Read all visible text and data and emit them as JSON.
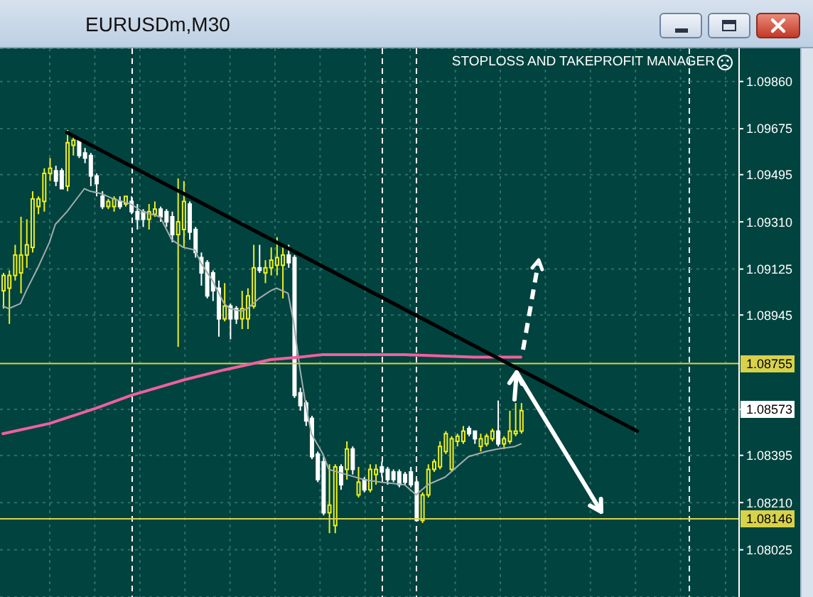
{
  "chart_data": {
    "type": "candlestick",
    "title": "EURUSDm,M30",
    "annotations": [
      "STOPLOSS AND TAKEPROFIT MANAGER",
      {
        "text": "1.08573",
        "y": 1.08573
      }
    ],
    "categories": [
      null,
      null,
      null,
      null,
      null,
      null,
      null,
      null,
      null,
      null,
      null,
      null,
      null,
      null,
      null,
      null,
      null,
      null,
      null,
      null,
      null,
      null,
      null,
      null,
      null,
      null,
      null,
      null,
      null,
      null,
      null,
      null,
      null,
      null,
      null,
      null,
      null,
      null,
      null,
      null,
      null,
      null,
      null,
      null,
      null,
      null,
      null,
      null,
      null,
      null,
      null,
      null,
      null,
      null,
      null,
      null,
      null,
      null,
      null,
      null,
      null,
      null,
      null,
      null,
      null,
      null,
      null,
      null,
      null,
      null,
      null,
      null,
      null,
      null,
      null,
      null,
      null,
      null,
      null,
      null,
      null,
      null,
      null,
      null,
      null,
      null,
      null,
      null,
      null,
      null,
      null,
      null,
      null,
      null,
      null,
      null,
      null,
      null,
      null,
      null,
      null,
      null,
      null,
      null,
      null,
      null,
      null,
      null,
      null,
      null,
      null,
      null,
      null,
      null,
      null,
      null,
      null,
      null,
      null,
      null,
      null,
      null,
      null,
      null,
      null,
      null,
      null
    ],
    "ohlc": [
      [
        1.0904,
        1.0911,
        1.0897,
        1.091
      ],
      [
        1.0905,
        1.0912,
        1.0891,
        1.091
      ],
      [
        1.091,
        1.0922,
        1.0908,
        1.0918
      ],
      [
        1.0911,
        1.0933,
        1.0903,
        1.0918
      ],
      [
        1.0918,
        1.0932,
        1.0913,
        1.0922
      ],
      [
        1.0921,
        1.0943,
        1.0919,
        1.094
      ],
      [
        1.0937,
        1.0941,
        1.0934,
        1.094
      ],
      [
        1.0939,
        1.0952,
        1.0935,
        1.095
      ],
      [
        1.095,
        1.0956,
        1.0947,
        1.0952
      ],
      [
        1.0951,
        1.0953,
        1.0945,
        1.0947
      ],
      [
        1.0951,
        1.0952,
        1.0944,
        1.0944
      ],
      [
        1.0945,
        1.0967,
        1.0943,
        1.0962
      ],
      [
        1.0961,
        1.0965,
        1.0957,
        1.0963
      ],
      [
        1.0963,
        1.0964,
        1.0956,
        1.0957
      ],
      [
        1.0958,
        1.096,
        1.0954,
        1.0956
      ],
      [
        1.0957,
        1.0958,
        1.0945,
        1.0949
      ],
      [
        1.0949,
        1.095,
        1.0941,
        1.0946
      ],
      [
        1.0941,
        1.0943,
        1.0936,
        1.0937
      ],
      [
        1.0937,
        1.094,
        1.0936,
        1.0939
      ],
      [
        1.0937,
        1.0941,
        1.0935,
        1.094
      ],
      [
        1.0939,
        1.0941,
        1.0936,
        1.0937
      ],
      [
        1.0938,
        1.0941,
        1.0937,
        1.0941
      ],
      [
        1.0939,
        1.0941,
        1.0934,
        1.0935
      ],
      [
        1.0935,
        1.0938,
        1.0928,
        1.0932
      ],
      [
        1.0935,
        1.0936,
        1.0929,
        1.0932
      ],
      [
        1.0932,
        1.0938,
        1.0928,
        1.0935
      ],
      [
        1.0934,
        1.0939,
        1.0933,
        1.0936
      ],
      [
        1.0936,
        1.0937,
        1.0931,
        1.0933
      ],
      [
        1.0935,
        1.0936,
        1.0929,
        1.0931
      ],
      [
        1.0933,
        1.0935,
        1.0923,
        1.0926
      ],
      [
        1.0926,
        1.0948,
        1.0882,
        1.0931
      ],
      [
        1.0928,
        1.0947,
        1.0921,
        1.0939
      ],
      [
        1.0938,
        1.0939,
        1.0924,
        1.0927
      ],
      [
        1.0928,
        1.0929,
        1.0917,
        1.0919
      ],
      [
        1.0917,
        1.0919,
        1.0906,
        1.0911
      ],
      [
        1.0915,
        1.0916,
        1.0901,
        1.0902
      ],
      [
        1.0911,
        1.0912,
        1.09,
        1.0904
      ],
      [
        1.0905,
        1.0908,
        1.0886,
        1.0893
      ],
      [
        1.0893,
        1.0907,
        1.0892,
        1.0898
      ],
      [
        1.0898,
        1.0899,
        1.0885,
        1.0893
      ],
      [
        1.0897,
        1.0898,
        1.0891,
        1.0893
      ],
      [
        1.0893,
        1.0904,
        1.0889,
        1.0897
      ],
      [
        1.0893,
        1.0905,
        1.0889,
        1.0902
      ],
      [
        1.0898,
        1.0922,
        1.0897,
        1.0913
      ],
      [
        1.0913,
        1.0922,
        1.0911,
        1.0912
      ],
      [
        1.0911,
        1.0916,
        1.0907,
        1.0913
      ],
      [
        1.0913,
        1.0921,
        1.091,
        1.0916
      ],
      [
        1.0914,
        1.0925,
        1.091,
        1.0917
      ],
      [
        1.0914,
        1.0921,
        1.0901,
        1.0918
      ],
      [
        1.0918,
        1.0922,
        1.0913,
        1.0915
      ],
      [
        1.0917,
        1.0918,
        1.0862,
        1.0863
      ],
      [
        1.0864,
        1.0866,
        1.0857,
        1.0859
      ],
      [
        1.086,
        1.0861,
        1.0851,
        1.0853
      ],
      [
        1.0854,
        1.0855,
        1.0838,
        1.0839
      ],
      [
        1.084,
        1.0841,
        1.0829,
        1.083
      ],
      [
        1.0837,
        1.0839,
        1.0816,
        1.0817
      ],
      [
        1.0817,
        1.0836,
        1.0809,
        1.082
      ],
      [
        1.0812,
        1.0836,
        1.0809,
        1.0835
      ],
      [
        1.0835,
        1.0836,
        1.0826,
        1.0828
      ],
      [
        1.0834,
        1.0845,
        1.083,
        1.0842
      ],
      [
        1.0842,
        1.0843,
        1.0832,
        1.0834
      ],
      [
        1.0824,
        1.0835,
        1.0823,
        1.0829
      ],
      [
        1.083,
        1.0831,
        1.0825,
        1.0826
      ],
      [
        1.0826,
        1.0836,
        1.0825,
        1.0834
      ],
      [
        1.0832,
        1.0836,
        1.0828,
        1.0834
      ],
      [
        1.0835,
        1.0837,
        1.0831,
        1.0833
      ],
      [
        1.0834,
        1.0835,
        1.0828,
        1.083
      ],
      [
        1.0833,
        1.0834,
        1.0829,
        1.083
      ],
      [
        1.0833,
        1.0834,
        1.0827,
        1.0828
      ],
      [
        1.0832,
        1.0833,
        1.0828,
        1.0829
      ],
      [
        1.0833,
        1.0835,
        1.0827,
        1.0828
      ],
      [
        1.0829,
        1.083,
        1.0814,
        1.0814
      ],
      [
        1.0814,
        1.0825,
        1.0813,
        1.0824
      ],
      [
        1.0824,
        1.0836,
        1.0823,
        1.0834
      ],
      [
        1.0834,
        1.0838,
        1.0833,
        1.0837
      ],
      [
        1.0835,
        1.0845,
        1.0834,
        1.0843
      ],
      [
        1.0841,
        1.0849,
        1.084,
        1.0848
      ],
      [
        1.0834,
        1.0847,
        1.0833,
        1.0846
      ],
      [
        1.0845,
        1.0848,
        1.0843,
        1.0847
      ],
      [
        1.0845,
        1.0851,
        1.0844,
        1.0849
      ],
      [
        1.085,
        1.0851,
        1.0847,
        1.0848
      ],
      [
        1.0849,
        1.0849,
        1.0844,
        1.0846
      ],
      [
        1.0843,
        1.0848,
        1.0841,
        1.0846
      ],
      [
        1.0844,
        1.0848,
        1.0843,
        1.0847
      ],
      [
        1.0846,
        1.085,
        1.0845,
        1.0849
      ],
      [
        1.0849,
        1.0861,
        1.0843,
        1.0844
      ],
      [
        1.0844,
        1.0847,
        1.0842,
        1.0846
      ],
      [
        1.0845,
        1.0857,
        1.0844,
        1.0849
      ],
      [
        1.0848,
        1.086,
        1.0847,
        1.0849
      ],
      [
        1.0849,
        1.086,
        1.0848,
        1.0857
      ],
      null,
      null,
      null,
      null,
      null,
      null,
      null,
      null,
      null,
      null,
      null,
      null,
      null,
      null,
      null,
      null,
      null,
      null,
      null,
      null,
      null,
      null,
      null,
      null,
      null,
      null,
      null,
      null,
      null,
      null,
      null,
      null,
      null,
      null,
      null,
      null,
      null
    ],
    "colors": [
      "#eef01e",
      "#eef01e",
      "#eef01e",
      "#eef01e",
      "#eef01e",
      "#eef01e",
      "#eef01e",
      "#eef01e",
      "#eef01e",
      "#ffffff",
      "#ffffff",
      "#eef01e",
      "#eef01e",
      "#ffffff",
      "#ffffff",
      "#ffffff",
      "#ffffff",
      "#ffffff",
      "#eef01e",
      "#eef01e",
      "#ffffff",
      "#eef01e",
      "#ffffff",
      "#ffffff",
      "#ffffff",
      "#eef01e",
      "#eef01e",
      "#ffffff",
      "#ffffff",
      "#ffffff",
      "#eef01e",
      "#eef01e",
      "#ffffff",
      "#ffffff",
      "#ffffff",
      "#ffffff",
      "#ffffff",
      "#ffffff",
      "#eef01e",
      "#ffffff",
      "#ffffff",
      "#eef01e",
      "#eef01e",
      "#eef01e",
      "#ffffff",
      "#eef01e",
      "#eef01e",
      "#eef01e",
      "#eef01e",
      "#ffffff",
      "#ffffff",
      "#ffffff",
      "#ffffff",
      "#ffffff",
      "#ffffff",
      "#ffffff",
      "#eef01e",
      "#eef01e",
      "#ffffff",
      "#eef01e",
      "#ffffff",
      "#eef01e",
      "#ffffff",
      "#eef01e",
      "#eef01e",
      "#ffffff",
      "#ffffff",
      "#ffffff",
      "#ffffff",
      "#ffffff",
      "#ffffff",
      "#ffffff",
      "#eef01e",
      "#eef01e",
      "#eef01e",
      "#eef01e",
      "#eef01e",
      "#eef01e",
      "#eef01e",
      "#eef01e",
      "#ffffff",
      "#ffffff",
      "#eef01e",
      "#eef01e",
      "#eef01e",
      "#ffffff",
      "#eef01e",
      "#eef01e",
      "#eef01e",
      "#eef01e",
      null,
      null,
      null,
      null,
      null,
      null,
      null,
      null,
      null,
      null,
      null,
      null,
      null,
      null,
      null,
      null,
      null,
      null,
      null,
      null,
      null,
      null,
      null,
      null,
      null,
      null,
      null,
      null,
      null,
      null,
      null,
      null,
      null,
      null,
      null,
      null,
      null
    ],
    "series": [
      {
        "type": "line",
        "color": "#a3adab",
        "values": [
          1.0898,
          1.0897,
          null,
          1.0899,
          1.0904,
          null,
          1.0913,
          null,
          1.0923,
          1.093,
          null,
          1.0935,
          null,
          1.0941,
          1.0944,
          1.0943,
          null,
          1.0942,
          null,
          1.094,
          null,
          null,
          1.0938,
          null,
          1.0935,
          null,
          null,
          1.0933,
          null,
          1.0924,
          null,
          1.0921,
          null,
          1.092,
          1.0915,
          null,
          1.0908,
          null,
          1.0899,
          1.0897,
          null,
          1.0896,
          1.0897,
          null,
          1.0901,
          null,
          1.0904,
          1.0905,
          null,
          1.0903,
          1.0891,
          1.0874,
          1.086,
          1.0848,
          null,
          1.084,
          1.0834,
          null,
          null,
          1.0832,
          null,
          null,
          1.083,
          null,
          null,
          1.0829,
          null,
          null,
          null,
          1.0828,
          null,
          1.0824,
          null,
          1.0828,
          null,
          null,
          1.0831,
          null,
          1.0835,
          null,
          1.0839,
          null,
          null,
          1.0841,
          null,
          1.0842,
          null,
          null,
          1.0843,
          1.0844,
          null,
          null,
          null,
          null,
          null,
          null,
          null,
          null,
          null,
          null,
          null,
          null,
          null,
          null,
          null,
          null,
          null,
          null,
          null,
          null,
          null,
          null,
          null,
          null,
          null,
          null,
          null,
          null,
          null,
          null,
          null,
          null,
          null,
          null,
          null,
          null,
          null
        ]
      },
      {
        "type": "line",
        "color": "#f0609c",
        "values": [
          1.0848,
          null,
          null,
          null,
          null,
          null,
          null,
          null,
          1.0852,
          null,
          null,
          null,
          null,
          null,
          null,
          null,
          1.0858,
          null,
          null,
          null,
          null,
          null,
          1.0863,
          null,
          null,
          null,
          null,
          null,
          null,
          null,
          null,
          1.0869,
          null,
          null,
          null,
          null,
          null,
          null,
          1.0873,
          null,
          null,
          null,
          null,
          null,
          null,
          null,
          1.0877,
          null,
          null,
          null,
          null,
          1.0878,
          null,
          null,
          null,
          1.0879,
          null,
          null,
          null,
          null,
          null,
          null,
          1.0879,
          null,
          null,
          null,
          null,
          null,
          null,
          1.0879,
          null,
          null,
          null,
          null,
          null,
          null,
          null,
          null,
          null,
          null,
          null,
          1.0878,
          null,
          null,
          null,
          null,
          null,
          null,
          null,
          1.0878,
          null,
          null,
          null,
          null,
          null,
          null,
          null,
          null,
          null,
          null,
          null,
          null,
          null,
          null,
          null,
          null,
          null,
          null,
          null,
          null,
          null,
          null,
          null,
          null,
          null,
          null,
          null,
          null,
          null,
          null,
          null,
          null,
          null,
          null,
          null,
          null,
          null
        ]
      },
      {
        "type": "line",
        "color": "#000000",
        "values": [
          null,
          null,
          null,
          null,
          null,
          null,
          null,
          null,
          null,
          null,
          null,
          1.0966,
          null,
          null,
          null,
          null,
          null,
          null,
          null,
          null,
          null,
          null,
          null,
          null,
          null,
          null,
          null,
          null,
          null,
          null,
          null,
          null,
          null,
          null,
          null,
          null,
          null,
          null,
          null,
          null,
          null,
          null,
          null,
          null,
          null,
          null,
          null,
          null,
          null,
          null,
          null,
          null,
          null,
          null,
          null,
          null,
          null,
          null,
          null,
          null,
          null,
          null,
          null,
          null,
          null,
          null,
          null,
          null,
          null,
          null,
          null,
          null,
          null,
          null,
          null,
          null,
          null,
          null,
          null,
          null,
          null,
          null,
          null,
          null,
          null,
          null,
          null,
          null,
          null,
          null,
          null,
          null,
          null,
          null,
          null,
          null,
          null,
          null,
          null,
          null,
          null,
          null,
          null,
          null,
          null,
          null,
          null,
          null,
          null,
          1.0849,
          null,
          null,
          null,
          null,
          null,
          null,
          null,
          null,
          null,
          null,
          null,
          null,
          null,
          null,
          null,
          null,
          null
        ]
      }
    ],
    "ylim": [
      1.0784,
      1.0999
    ],
    "yticks": [
      {
        "value": 1.0986,
        "label": "1.09860"
      },
      1.09675,
      1.09495,
      {
        "value": 1.0931,
        "label": "1.09310"
      },
      1.09125,
      1.08945,
      {
        "value": 1.08575,
        "label": null
      },
      1.08395,
      {
        "value": 1.0821,
        "label": "1.08210"
      },
      1.08025
    ],
    "ref_lines": [
      {
        "axis": "y",
        "value": 1.08755,
        "label": "1.08755",
        "color": "#d8d24a"
      },
      {
        "axis": "y",
        "value": 1.08146,
        "label": "1.08146",
        "color": "#d8d24a"
      }
    ],
    "grid": true,
    "tick_labels": "y"
  }
}
